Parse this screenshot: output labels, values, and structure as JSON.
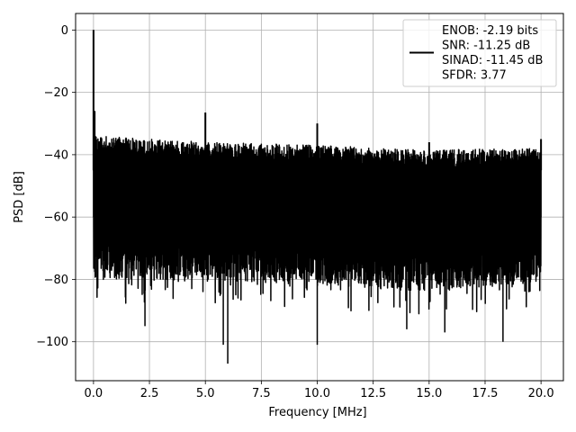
{
  "chart_data": {
    "type": "line",
    "title": "",
    "xlabel": "Frequency [MHz]",
    "ylabel": "PSD [dB]",
    "xlim": [
      -0.8,
      21.0
    ],
    "ylim": [
      -112.5,
      5.3
    ],
    "grid": true,
    "x_ticks": [
      0.0,
      2.5,
      5.0,
      7.5,
      10.0,
      12.5,
      15.0,
      17.5,
      20.0
    ],
    "x_tick_labels": [
      "0.0",
      "2.5",
      "5.0",
      "7.5",
      "10.0",
      "12.5",
      "15.0",
      "17.5",
      "20.0"
    ],
    "y_ticks": [
      0,
      -20,
      -40,
      -60,
      -80,
      -100
    ],
    "y_tick_labels": [
      "0",
      "−20",
      "−40",
      "−60",
      "−80",
      "−100"
    ],
    "legend_position": "top-right",
    "series": [
      {
        "name": "ENOB: -2.19 bits\nSNR: -11.25 dB\nSINAD: -11.45 dB\nSFDR: 3.77",
        "color": "#000000",
        "x_range": [
          0.0,
          20.0
        ],
        "dense_noise": true,
        "upper_envelope": [
          [
            0.05,
            -34
          ],
          [
            5.0,
            -36
          ],
          [
            10.0,
            -37
          ],
          [
            15.0,
            -38.5
          ],
          [
            20.0,
            -38
          ]
        ],
        "lower_envelope": [
          [
            0.05,
            -80
          ],
          [
            5.0,
            -80
          ],
          [
            10.0,
            -82
          ],
          [
            15.0,
            -84
          ],
          [
            20.0,
            -81
          ]
        ],
        "deep_dips": [
          [
            2.3,
            -95
          ],
          [
            6.0,
            -107
          ],
          [
            5.8,
            -101
          ],
          [
            10.0,
            -101
          ],
          [
            14.0,
            -96
          ],
          [
            15.7,
            -97
          ],
          [
            18.3,
            -100
          ]
        ],
        "spurs": [
          {
            "x": 0.0,
            "y": 0.0
          },
          {
            "x": 0.05,
            "y": -26
          },
          {
            "x": 5.0,
            "y": -26.5
          },
          {
            "x": 10.0,
            "y": -30
          },
          {
            "x": 15.0,
            "y": -36
          },
          {
            "x": 20.0,
            "y": -35
          }
        ]
      }
    ]
  }
}
